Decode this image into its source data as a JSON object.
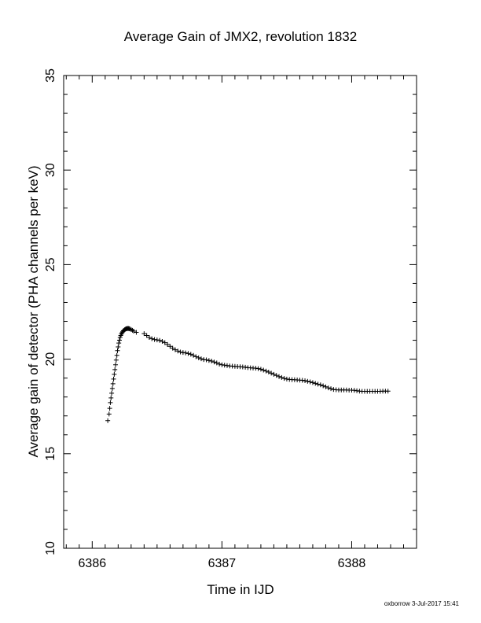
{
  "chart_data": {
    "type": "scatter",
    "title": "Average Gain of JMX2, revolution 1832",
    "xlabel": "Time in IJD",
    "ylabel": "Average gain of detector (PHA channels per keV)",
    "xlim": [
      6385.78,
      6388.5
    ],
    "ylim": [
      10,
      35
    ],
    "x_ticks": [
      6386,
      6387,
      6388
    ],
    "y_ticks": [
      10,
      15,
      20,
      25,
      30,
      35
    ],
    "x_minor_step": 0.1,
    "y_minor_step": 1,
    "grid": false,
    "marker": "plus",
    "series": [
      {
        "points": [
          [
            6386.12,
            16.75
          ],
          [
            6386.13,
            17.1
          ],
          [
            6386.135,
            17.4
          ],
          [
            6386.14,
            17.7
          ],
          [
            6386.145,
            17.95
          ],
          [
            6386.15,
            18.2
          ],
          [
            6386.155,
            18.45
          ],
          [
            6386.16,
            18.7
          ],
          [
            6386.165,
            18.95
          ],
          [
            6386.17,
            19.2
          ],
          [
            6386.175,
            19.45
          ],
          [
            6386.18,
            19.7
          ],
          [
            6386.185,
            19.95
          ],
          [
            6386.19,
            20.2
          ],
          [
            6386.195,
            20.45
          ],
          [
            6386.2,
            20.65
          ],
          [
            6386.205,
            20.85
          ],
          [
            6386.21,
            21.0
          ],
          [
            6386.215,
            21.15
          ],
          [
            6386.22,
            21.25
          ],
          [
            6386.225,
            21.33
          ],
          [
            6386.23,
            21.4
          ],
          [
            6386.235,
            21.45
          ],
          [
            6386.24,
            21.5
          ],
          [
            6386.245,
            21.53
          ],
          [
            6386.25,
            21.56
          ],
          [
            6386.255,
            21.58
          ],
          [
            6386.26,
            21.6
          ],
          [
            6386.265,
            21.61
          ],
          [
            6386.27,
            21.62
          ],
          [
            6386.275,
            21.62
          ],
          [
            6386.28,
            21.62
          ],
          [
            6386.285,
            21.61
          ],
          [
            6386.29,
            21.6
          ],
          [
            6386.3,
            21.57
          ],
          [
            6386.31,
            21.53
          ],
          [
            6386.32,
            21.48
          ],
          [
            6386.34,
            21.42
          ],
          [
            6386.4,
            21.35
          ],
          [
            6386.42,
            21.25
          ],
          [
            6386.44,
            21.15
          ],
          [
            6386.46,
            21.08
          ],
          [
            6386.48,
            21.04
          ],
          [
            6386.5,
            21.02
          ],
          [
            6386.52,
            20.99
          ],
          [
            6386.54,
            20.94
          ],
          [
            6386.56,
            20.87
          ],
          [
            6386.58,
            20.78
          ],
          [
            6386.6,
            20.68
          ],
          [
            6386.62,
            20.58
          ],
          [
            6386.64,
            20.5
          ],
          [
            6386.66,
            20.43
          ],
          [
            6386.68,
            20.38
          ],
          [
            6386.7,
            20.35
          ],
          [
            6386.72,
            20.33
          ],
          [
            6386.74,
            20.3
          ],
          [
            6386.76,
            20.26
          ],
          [
            6386.78,
            20.2
          ],
          [
            6386.8,
            20.13
          ],
          [
            6386.82,
            20.07
          ],
          [
            6386.84,
            20.02
          ],
          [
            6386.86,
            19.98
          ],
          [
            6386.88,
            19.96
          ],
          [
            6386.9,
            19.93
          ],
          [
            6386.92,
            19.9
          ],
          [
            6386.94,
            19.85
          ],
          [
            6386.96,
            19.8
          ],
          [
            6386.98,
            19.74
          ],
          [
            6387.0,
            19.7
          ],
          [
            6387.02,
            19.68
          ],
          [
            6387.04,
            19.66
          ],
          [
            6387.06,
            19.64
          ],
          [
            6387.08,
            19.63
          ],
          [
            6387.1,
            19.62
          ],
          [
            6387.12,
            19.61
          ],
          [
            6387.14,
            19.6
          ],
          [
            6387.16,
            19.59
          ],
          [
            6387.18,
            19.57
          ],
          [
            6387.2,
            19.55
          ],
          [
            6387.22,
            19.54
          ],
          [
            6387.24,
            19.53
          ],
          [
            6387.26,
            19.52
          ],
          [
            6387.28,
            19.5
          ],
          [
            6387.3,
            19.47
          ],
          [
            6387.32,
            19.42
          ],
          [
            6387.34,
            19.37
          ],
          [
            6387.36,
            19.32
          ],
          [
            6387.38,
            19.26
          ],
          [
            6387.4,
            19.2
          ],
          [
            6387.42,
            19.14
          ],
          [
            6387.44,
            19.08
          ],
          [
            6387.46,
            19.03
          ],
          [
            6387.48,
            18.98
          ],
          [
            6387.5,
            18.95
          ],
          [
            6387.52,
            18.93
          ],
          [
            6387.54,
            18.92
          ],
          [
            6387.56,
            18.91
          ],
          [
            6387.58,
            18.9
          ],
          [
            6387.6,
            18.89
          ],
          [
            6387.62,
            18.88
          ],
          [
            6387.64,
            18.86
          ],
          [
            6387.66,
            18.83
          ],
          [
            6387.68,
            18.8
          ],
          [
            6387.7,
            18.76
          ],
          [
            6387.72,
            18.72
          ],
          [
            6387.74,
            18.68
          ],
          [
            6387.76,
            18.64
          ],
          [
            6387.78,
            18.59
          ],
          [
            6387.8,
            18.54
          ],
          [
            6387.82,
            18.48
          ],
          [
            6387.84,
            18.44
          ],
          [
            6387.86,
            18.4
          ],
          [
            6387.88,
            18.38
          ],
          [
            6387.9,
            18.37
          ],
          [
            6387.92,
            18.37
          ],
          [
            6387.94,
            18.37
          ],
          [
            6387.96,
            18.37
          ],
          [
            6387.98,
            18.36
          ],
          [
            6388.0,
            18.36
          ],
          [
            6388.02,
            18.35
          ],
          [
            6388.04,
            18.33
          ],
          [
            6388.06,
            18.31
          ],
          [
            6388.08,
            18.3
          ],
          [
            6388.1,
            18.3
          ],
          [
            6388.12,
            18.3
          ],
          [
            6388.14,
            18.3
          ],
          [
            6388.16,
            18.3
          ],
          [
            6388.18,
            18.3
          ],
          [
            6388.2,
            18.3
          ],
          [
            6388.22,
            18.3
          ],
          [
            6388.24,
            18.31
          ],
          [
            6388.26,
            18.31
          ],
          [
            6388.28,
            18.31
          ]
        ]
      }
    ]
  },
  "footer": {
    "text": "oxborrow  3-Jul-2017 15:41"
  }
}
